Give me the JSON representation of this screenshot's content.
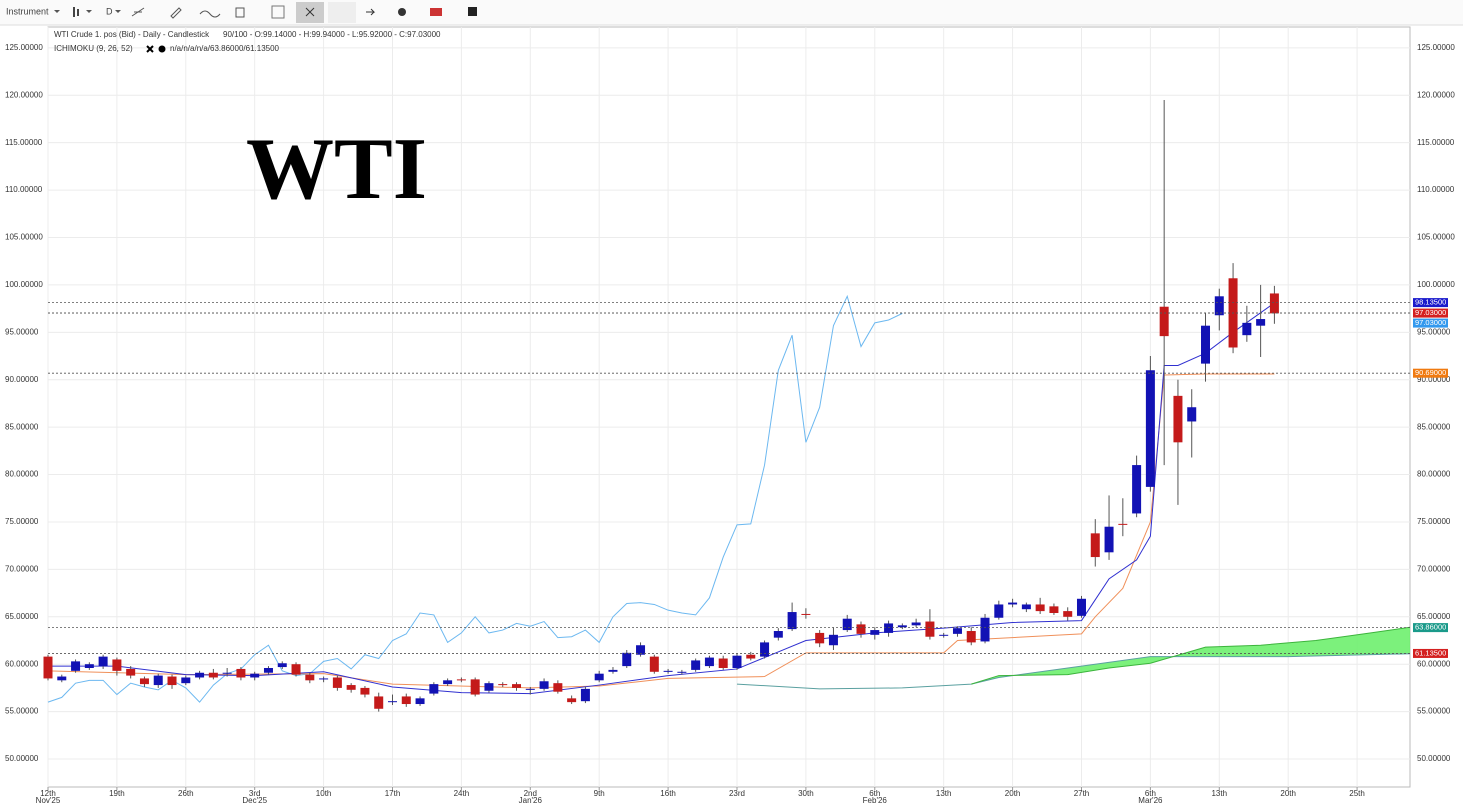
{
  "toolbar": {
    "instrument": "Instrument",
    "period": "D"
  },
  "chart_data": {
    "type": "candlestick",
    "title": "WTI",
    "legend_lines": [
      "WTI Crude 1. pos (Bid) - Daily - Candlestick",
      "90/100 - O:99.14000 - H:99.94000 - L:95.92000 - C:97.03000",
      "ICHIMOKU (9, 26, 52)",
      "n/a/n/a/n/a/63.86000/61.13500"
    ],
    "up_color": "#1212b4",
    "down_color": "#c41a1a",
    "grid": true,
    "xlim": [
      0,
      98.84
    ],
    "ylim": [
      47.05,
      127.2
    ],
    "xticks": [
      {
        "value": 0,
        "label": "12th",
        "month": "Nov'25"
      },
      {
        "value": 5,
        "label": "19th"
      },
      {
        "value": 10,
        "label": "26th"
      },
      {
        "value": 15,
        "label": "3rd",
        "month": "Dec'25"
      },
      {
        "value": 20,
        "label": "10th"
      },
      {
        "value": 25,
        "label": "17th"
      },
      {
        "value": 30,
        "label": "24th"
      },
      {
        "value": 35,
        "label": "2nd",
        "month": "Jan'26"
      },
      {
        "value": 40,
        "label": "9th"
      },
      {
        "value": 45,
        "label": "16th"
      },
      {
        "value": 50,
        "label": "23rd"
      },
      {
        "value": 55,
        "label": "30th"
      },
      {
        "value": 60,
        "label": "6th",
        "month": "Feb'26"
      },
      {
        "value": 65,
        "label": "13th"
      },
      {
        "value": 70,
        "label": "20th"
      },
      {
        "value": 75,
        "label": "27th"
      },
      {
        "value": 80,
        "label": "6th",
        "month": "Mar'26"
      },
      {
        "value": 85,
        "label": "13th"
      },
      {
        "value": 90,
        "label": "20th"
      },
      {
        "value": 95,
        "label": "25th"
      }
    ],
    "yticks": [
      {
        "value": 50,
        "label": "50.00000"
      },
      {
        "value": 55,
        "label": "55.00000"
      },
      {
        "value": 60,
        "label": "60.00000"
      },
      {
        "value": 65,
        "label": "65.00000"
      },
      {
        "value": 70,
        "label": "70.00000"
      },
      {
        "value": 75,
        "label": "75.00000"
      },
      {
        "value": 80,
        "label": "80.00000"
      },
      {
        "value": 85,
        "label": "85.00000"
      },
      {
        "value": 90,
        "label": "90.00000"
      },
      {
        "value": 95,
        "label": "95.00000"
      },
      {
        "value": 100,
        "label": "100.00000"
      },
      {
        "value": 105,
        "label": "105.00000"
      },
      {
        "value": 110,
        "label": "110.00000"
      },
      {
        "value": 115,
        "label": "115.00000"
      },
      {
        "value": 120,
        "label": "120.00000"
      },
      {
        "value": 125,
        "label": "125.00000"
      }
    ],
    "x": [
      0,
      1,
      2,
      3,
      4,
      5,
      6,
      7,
      8,
      9,
      10,
      11,
      12,
      13,
      14,
      15,
      16,
      17,
      18,
      19,
      20,
      21,
      22,
      23,
      24,
      25,
      26,
      27,
      28,
      29,
      30,
      31,
      32,
      33,
      34,
      35,
      36,
      37,
      38,
      39,
      40,
      41,
      42,
      43,
      44,
      45,
      46,
      47,
      48,
      49,
      50,
      51,
      52,
      53,
      54,
      55,
      56,
      57,
      58,
      59,
      60,
      61,
      62,
      63,
      64,
      65,
      66,
      67,
      68,
      69,
      70,
      71,
      72,
      73,
      74,
      75,
      76,
      77,
      78,
      79,
      80,
      81,
      82,
      83,
      84,
      85,
      86,
      87,
      88,
      89
    ],
    "ohlc": [
      [
        60.8,
        61.0,
        58.3,
        58.5
      ],
      [
        58.3,
        58.9,
        58.1,
        58.7
      ],
      [
        59.3,
        60.5,
        59.1,
        60.3
      ],
      [
        59.6,
        60.2,
        59.4,
        60.0
      ],
      [
        59.8,
        61.0,
        59.5,
        60.8
      ],
      [
        60.5,
        60.7,
        58.8,
        59.3
      ],
      [
        59.5,
        59.8,
        58.5,
        58.8
      ],
      [
        58.5,
        58.7,
        57.6,
        57.9
      ],
      [
        57.8,
        59.0,
        57.5,
        58.8
      ],
      [
        58.7,
        58.9,
        57.4,
        57.8
      ],
      [
        58.0,
        58.8,
        57.8,
        58.6
      ],
      [
        58.6,
        59.3,
        58.4,
        59.1
      ],
      [
        59.1,
        59.5,
        58.4,
        58.6
      ],
      [
        59.0,
        59.6,
        58.7,
        59.1
      ],
      [
        59.5,
        59.7,
        58.3,
        58.6
      ],
      [
        58.6,
        59.2,
        58.3,
        59.0
      ],
      [
        59.1,
        59.8,
        58.9,
        59.6
      ],
      [
        59.7,
        60.3,
        59.5,
        60.1
      ],
      [
        60.0,
        60.2,
        58.7,
        58.9
      ],
      [
        58.9,
        59.1,
        58.0,
        58.3
      ],
      [
        58.4,
        58.7,
        58.1,
        58.5
      ],
      [
        58.6,
        58.8,
        57.2,
        57.5
      ],
      [
        57.8,
        58.0,
        57.0,
        57.3
      ],
      [
        57.5,
        57.7,
        56.5,
        56.8
      ],
      [
        56.6,
        57.0,
        55.0,
        55.3
      ],
      [
        56.0,
        56.8,
        55.7,
        56.1
      ],
      [
        56.6,
        56.9,
        55.5,
        55.8
      ],
      [
        55.8,
        56.6,
        55.6,
        56.4
      ],
      [
        56.9,
        58.1,
        56.7,
        57.9
      ],
      [
        57.9,
        58.5,
        57.7,
        58.3
      ],
      [
        58.4,
        58.6,
        58.1,
        58.3
      ],
      [
        58.4,
        58.6,
        56.6,
        56.8
      ],
      [
        57.2,
        58.2,
        57.0,
        58.0
      ],
      [
        57.9,
        58.1,
        57.6,
        57.8
      ],
      [
        57.9,
        58.1,
        57.2,
        57.5
      ],
      [
        57.3,
        57.6,
        56.8,
        57.4
      ],
      [
        57.4,
        58.5,
        57.2,
        58.2
      ],
      [
        58.0,
        58.3,
        56.9,
        57.1
      ],
      [
        56.4,
        56.7,
        55.8,
        56.0
      ],
      [
        56.1,
        57.6,
        55.9,
        57.4
      ],
      [
        58.3,
        59.3,
        58.1,
        59.0
      ],
      [
        59.2,
        59.7,
        59.0,
        59.4
      ],
      [
        59.8,
        61.5,
        59.6,
        61.2
      ],
      [
        61.0,
        62.3,
        60.8,
        62.0
      ],
      [
        60.8,
        61.0,
        59.0,
        59.2
      ],
      [
        59.2,
        59.5,
        59.0,
        59.3
      ],
      [
        59.1,
        59.4,
        58.9,
        59.2
      ],
      [
        59.4,
        60.6,
        59.2,
        60.4
      ],
      [
        59.8,
        60.9,
        59.6,
        60.7
      ],
      [
        60.6,
        60.9,
        59.4,
        59.6
      ],
      [
        59.6,
        61.1,
        59.4,
        60.9
      ],
      [
        61.0,
        61.3,
        60.4,
        60.6
      ],
      [
        60.8,
        62.5,
        60.6,
        62.3
      ],
      [
        62.8,
        63.8,
        62.5,
        63.5
      ],
      [
        63.7,
        66.5,
        63.5,
        65.5
      ],
      [
        65.3,
        65.9,
        64.8,
        65.2
      ],
      [
        63.3,
        63.6,
        61.8,
        62.2
      ],
      [
        62.0,
        63.9,
        61.5,
        63.1
      ],
      [
        63.6,
        65.2,
        63.4,
        64.8
      ],
      [
        64.2,
        64.5,
        62.8,
        63.2
      ],
      [
        63.1,
        63.9,
        62.6,
        63.6
      ],
      [
        63.3,
        64.6,
        62.9,
        64.3
      ],
      [
        63.9,
        64.3,
        63.7,
        64.1
      ],
      [
        64.1,
        64.8,
        63.9,
        64.4
      ],
      [
        64.5,
        65.8,
        62.6,
        62.9
      ],
      [
        63.0,
        63.3,
        62.8,
        63.1
      ],
      [
        63.2,
        64.0,
        62.9,
        63.8
      ],
      [
        63.5,
        63.9,
        62.0,
        62.3
      ],
      [
        62.4,
        65.3,
        62.2,
        64.9
      ],
      [
        64.9,
        66.7,
        64.7,
        66.3
      ],
      [
        66.3,
        66.9,
        66.0,
        66.5
      ],
      [
        65.8,
        66.5,
        65.5,
        66.3
      ],
      [
        66.3,
        67.0,
        65.3,
        65.6
      ],
      [
        66.1,
        66.4,
        65.2,
        65.4
      ],
      [
        65.6,
        66.0,
        64.6,
        65.0
      ],
      [
        65.1,
        67.2,
        64.9,
        66.9
      ],
      [
        73.8,
        75.3,
        70.3,
        71.3
      ],
      [
        71.8,
        77.8,
        71.0,
        74.5
      ],
      [
        74.8,
        77.5,
        73.5,
        74.7
      ],
      [
        75.9,
        82.0,
        75.5,
        81.0
      ],
      [
        78.7,
        92.5,
        78.2,
        91.0
      ],
      [
        97.7,
        119.5,
        81.0,
        94.6
      ],
      [
        88.3,
        90.0,
        76.8,
        83.4
      ],
      [
        85.6,
        89.0,
        81.8,
        87.1
      ],
      [
        91.7,
        97.0,
        89.8,
        95.7
      ],
      [
        96.8,
        99.6,
        95.2,
        98.8
      ],
      [
        100.7,
        102.3,
        92.8,
        93.4
      ],
      [
        94.7,
        97.8,
        94.0,
        96.0
      ],
      [
        95.7,
        100.0,
        92.4,
        96.4
      ],
      [
        99.1,
        99.9,
        95.9,
        97.0
      ]
    ],
    "lines": {
      "chikou": {
        "color": "#6cb8f0",
        "x": [
          0,
          1,
          2,
          3,
          4,
          5,
          6,
          7,
          8,
          9,
          10,
          11,
          12,
          13,
          14,
          15,
          16,
          17,
          18,
          19,
          20,
          21,
          22,
          23,
          24,
          25,
          26,
          27,
          28,
          29,
          30,
          31,
          32,
          33,
          34,
          35,
          36,
          37,
          38,
          39,
          40,
          41,
          42,
          43,
          44,
          45,
          46,
          47,
          48,
          49,
          50,
          51,
          52,
          53,
          54,
          55,
          56,
          57,
          58,
          59,
          60,
          61,
          62
        ],
        "values": [
          56.0,
          56.5,
          58.0,
          58.3,
          58.3,
          56.8,
          58.0,
          57.6,
          57.3,
          58.3,
          57.5,
          56.0,
          57.8,
          59.0,
          59.5,
          61.0,
          62.0,
          59.3,
          58.8,
          59.0,
          60.3,
          60.6,
          59.5,
          61.0,
          60.6,
          62.5,
          63.2,
          65.4,
          65.2,
          62.3,
          63.3,
          65.0,
          63.3,
          63.6,
          64.3,
          64.0,
          64.5,
          62.8,
          62.9,
          63.6,
          62.3,
          65.0,
          66.4,
          66.5,
          66.3,
          65.7,
          65.4,
          65.2,
          67.0,
          71.3,
          74.7,
          74.8,
          81.0,
          91.0,
          94.7,
          83.4,
          87.1,
          95.7,
          98.8,
          93.5,
          96.0,
          96.3,
          97.0
        ]
      },
      "tenkan": {
        "color": "#3030d0",
        "x": [
          0,
          5,
          10,
          15,
          20,
          25,
          30,
          35,
          40,
          45,
          50,
          55,
          60,
          65,
          70,
          75,
          77,
          79,
          80,
          81,
          82,
          84,
          86,
          89
        ],
        "values": [
          59.8,
          59.8,
          58.9,
          58.8,
          59.2,
          57.6,
          57.0,
          56.9,
          57.8,
          58.8,
          59.5,
          62.5,
          63.3,
          63.8,
          64.4,
          64.6,
          69.0,
          71.0,
          73.5,
          91.5,
          91.5,
          92.8,
          95.0,
          98.1
        ]
      },
      "kijun": {
        "color": "#f0905a",
        "x": [
          0,
          10,
          20,
          25,
          35,
          40,
          45,
          52,
          55,
          65,
          66,
          75,
          76,
          78,
          80,
          81,
          84,
          89
        ],
        "values": [
          59.3,
          58.9,
          59.0,
          57.9,
          57.5,
          57.7,
          58.5,
          58.7,
          61.2,
          61.2,
          62.5,
          63.2,
          65.0,
          68.0,
          75.0,
          90.5,
          90.6,
          90.6
        ]
      },
      "span_a": {
        "color": "#3cb43c",
        "x": [
          67,
          69,
          74,
          77,
          80,
          84,
          88,
          92,
          96,
          98.84
        ],
        "values": [
          57.9,
          58.8,
          58.9,
          59.6,
          60.1,
          61.8,
          62.0,
          62.5,
          63.3,
          63.9
        ]
      },
      "span_b": {
        "color": "#5aa0a0",
        "x": [
          50,
          56,
          62,
          67,
          69,
          80,
          90,
          98.84
        ],
        "values": [
          57.9,
          57.4,
          57.5,
          57.9,
          58.6,
          60.8,
          60.8,
          61.1
        ]
      }
    },
    "cloud_color": "#6ef06e",
    "price_lines": [
      {
        "value": 98.135,
        "label": "98.13500",
        "color": "#1a1acc"
      },
      {
        "value": 97.03,
        "label": "97.03000",
        "color": "#d42020"
      },
      {
        "value": 97.03,
        "label": "97.03000",
        "color": "#3399ee"
      },
      {
        "value": 90.69,
        "label": "90.69000",
        "color": "#f07a10"
      },
      {
        "value": 63.86,
        "label": "63.86000",
        "color": "#1a9a8a"
      },
      {
        "value": 61.135,
        "label": "61.13500",
        "color": "#d42020"
      }
    ]
  }
}
